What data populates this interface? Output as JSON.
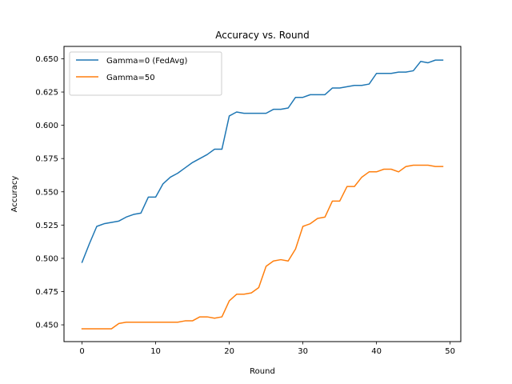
{
  "chart_data": {
    "type": "line",
    "title": "Accuracy vs. Round",
    "xlabel": "Round",
    "ylabel": "Accuracy",
    "xlim": [
      -2.45,
      51.45
    ],
    "ylim": [
      0.4374,
      0.6593
    ],
    "xticks": [
      0,
      10,
      20,
      30,
      40,
      50
    ],
    "yticks": [
      0.45,
      0.475,
      0.5,
      0.525,
      0.55,
      0.575,
      0.6,
      0.625,
      0.65
    ],
    "grid": false,
    "legend_position": "top-left",
    "x": [
      0,
      1,
      2,
      3,
      4,
      5,
      6,
      7,
      8,
      9,
      10,
      11,
      12,
      13,
      14,
      15,
      16,
      17,
      18,
      19,
      20,
      21,
      22,
      23,
      24,
      25,
      26,
      27,
      28,
      29,
      30,
      31,
      32,
      33,
      34,
      35,
      36,
      37,
      38,
      39,
      40,
      41,
      42,
      43,
      44,
      45,
      46,
      47,
      48,
      49
    ],
    "series": [
      {
        "name": "Gamma=0 (FedAvg)",
        "color": "#1f77b4",
        "values": [
          0.497,
          0.511,
          0.524,
          0.526,
          0.527,
          0.528,
          0.531,
          0.533,
          0.534,
          0.546,
          0.546,
          0.556,
          0.561,
          0.564,
          0.568,
          0.572,
          0.575,
          0.578,
          0.582,
          0.582,
          0.607,
          0.61,
          0.609,
          0.609,
          0.609,
          0.609,
          0.612,
          0.612,
          0.613,
          0.621,
          0.621,
          0.623,
          0.623,
          0.623,
          0.628,
          0.628,
          0.629,
          0.63,
          0.63,
          0.631,
          0.639,
          0.639,
          0.639,
          0.64,
          0.64,
          0.641,
          0.648,
          0.647,
          0.649,
          0.649
        ]
      },
      {
        "name": "Gamma=50",
        "color": "#ff7f0e",
        "values": [
          0.447,
          0.447,
          0.447,
          0.447,
          0.447,
          0.451,
          0.452,
          0.452,
          0.452,
          0.452,
          0.452,
          0.452,
          0.452,
          0.452,
          0.453,
          0.453,
          0.456,
          0.456,
          0.455,
          0.456,
          0.468,
          0.473,
          0.473,
          0.474,
          0.478,
          0.494,
          0.498,
          0.499,
          0.498,
          0.507,
          0.524,
          0.526,
          0.53,
          0.531,
          0.543,
          0.543,
          0.554,
          0.554,
          0.561,
          0.565,
          0.565,
          0.567,
          0.567,
          0.565,
          0.569,
          0.57,
          0.57,
          0.57,
          0.569,
          0.569
        ]
      }
    ]
  }
}
